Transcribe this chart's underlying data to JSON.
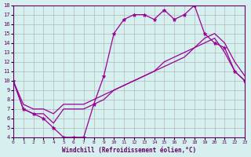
{
  "xlabel": "Windchill (Refroidissement éolien,°C)",
  "bg_color": "#d6f0ef",
  "grid_color": "#aaaaaa",
  "line_color": "#990099",
  "xlim": [
    0,
    23
  ],
  "ylim": [
    4,
    18
  ],
  "xticks": [
    0,
    1,
    2,
    3,
    4,
    5,
    6,
    7,
    8,
    9,
    10,
    11,
    12,
    13,
    14,
    15,
    16,
    17,
    18,
    19,
    20,
    21,
    22,
    23
  ],
  "yticks": [
    4,
    5,
    6,
    7,
    8,
    9,
    10,
    11,
    12,
    13,
    14,
    15,
    16,
    17,
    18
  ],
  "line1_x": [
    0,
    1,
    2,
    3,
    4,
    5,
    6,
    7,
    8,
    9,
    10,
    11,
    12,
    13,
    14,
    15,
    16,
    17,
    18,
    19,
    20,
    21,
    22,
    23
  ],
  "line1_y": [
    10,
    7,
    6.5,
    6,
    5,
    4,
    4,
    4,
    7.5,
    10.5,
    15,
    16.5,
    17,
    17,
    16.5,
    17.5,
    16.5,
    17,
    18,
    15,
    14,
    13.5,
    11,
    10
  ],
  "line2_x": [
    0,
    1,
    2,
    3,
    4,
    5,
    6,
    7,
    8,
    9,
    10,
    11,
    12,
    13,
    14,
    15,
    16,
    17,
    18,
    19,
    20,
    21,
    22,
    23
  ],
  "line2_y": [
    10,
    7,
    6.5,
    6.5,
    5.5,
    7,
    7,
    7,
    7.5,
    8,
    9,
    9.5,
    10,
    10.5,
    11,
    12,
    12.5,
    13,
    13.5,
    14,
    14.5,
    13,
    11,
    10
  ],
  "line3_x": [
    0,
    1,
    2,
    3,
    4,
    5,
    6,
    7,
    8,
    9,
    10,
    11,
    12,
    13,
    14,
    15,
    16,
    17,
    18,
    19,
    20,
    21,
    22,
    23
  ],
  "line3_y": [
    10,
    7.5,
    7,
    7,
    6.5,
    7.5,
    7.5,
    7.5,
    8,
    8.5,
    9,
    9.5,
    10,
    10.5,
    11,
    11.5,
    12,
    12.5,
    13.5,
    14.5,
    15,
    14,
    12,
    10.5
  ]
}
